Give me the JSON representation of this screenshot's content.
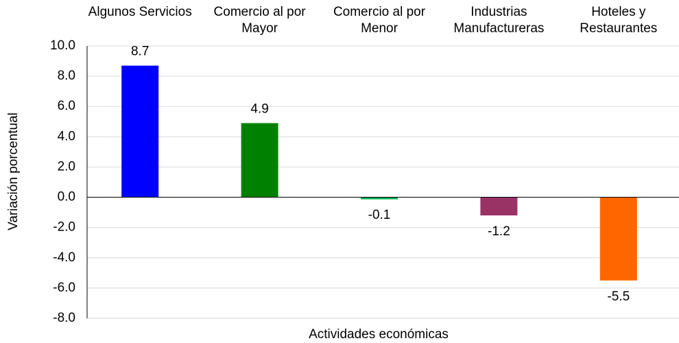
{
  "chart_data": {
    "type": "bar",
    "categories": [
      "Algunos Servicios",
      "Comercio al por Mayor",
      "Comercio al por Menor",
      "Industrias Manufactureras",
      "Hoteles y Restaurantes"
    ],
    "values": [
      8.7,
      4.9,
      -0.1,
      -1.2,
      -5.5
    ],
    "colors": [
      "#0000ff",
      "#008000",
      "#00b050",
      "#993366",
      "#ff6600"
    ],
    "ylim": [
      -8,
      10
    ],
    "yticks": [
      {
        "value": -8,
        "label": "-8.0"
      },
      {
        "value": -6,
        "label": "-6.0"
      },
      {
        "value": -4,
        "label": "-4.0"
      },
      {
        "value": -2,
        "label": "-2.0"
      },
      {
        "value": 0,
        "label": "0.0"
      },
      {
        "value": 2,
        "label": "2.0"
      },
      {
        "value": 4,
        "label": "4.0"
      },
      {
        "value": 6,
        "label": "6.0"
      },
      {
        "value": 8,
        "label": "8.0"
      },
      {
        "value": 10,
        "label": "10.0"
      }
    ],
    "xlabel": "Actividades económicas",
    "ylabel": "Variación porcentual",
    "grid": true
  }
}
